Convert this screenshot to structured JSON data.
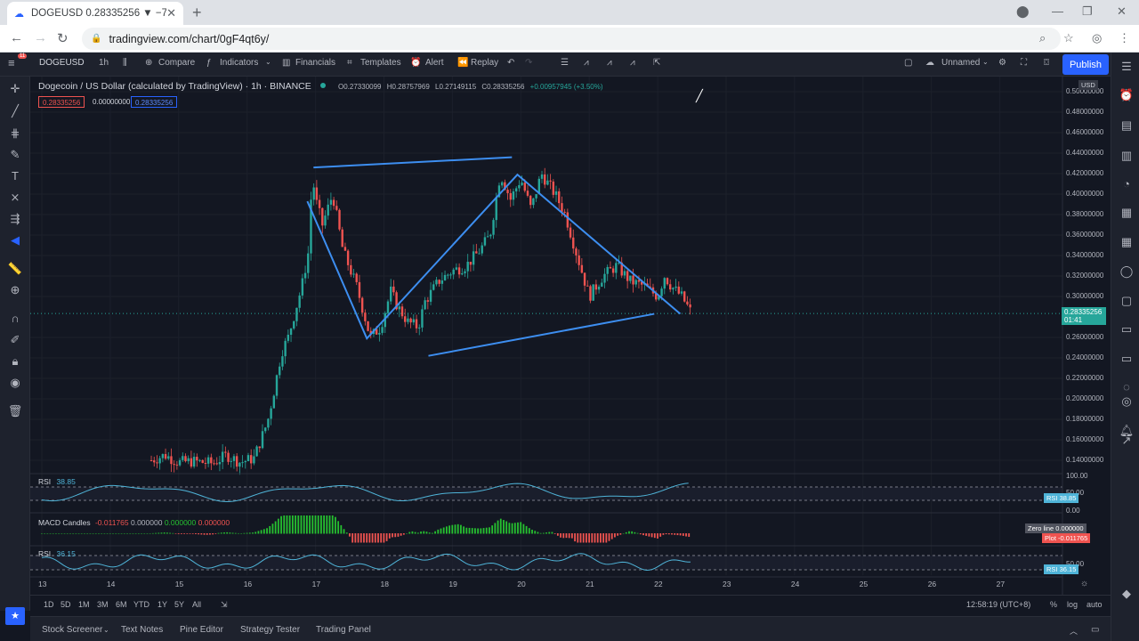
{
  "browser": {
    "tab_title": "DOGEUSD 0.28335256 ▼ −7.45% U",
    "url": "tradingview.com/chart/0gF4qt6y/"
  },
  "toolbar": {
    "symbol": "DOGEUSD",
    "interval": "1h",
    "compare": "Compare",
    "indicators": "Indicators",
    "financials": "Financials",
    "templates": "Templates",
    "alert": "Alert",
    "replay": "Replay",
    "layout_name": "Unnamed",
    "publish": "Publish"
  },
  "legend": {
    "title": "Dogecoin / US Dollar (calculated by TradingView) · 1h · BINANCE",
    "o": "O0.27330099",
    "h": "H0.28757969",
    "l": "L0.27149115",
    "c": "C0.28335256",
    "chg": "+0.00957945 (+3.50%)",
    "sell": "0.28335256",
    "spread": "0.00000000",
    "buy": "0.28335256"
  },
  "price_axis": {
    "currency": "USD",
    "labels": [
      "0.50000000",
      "0.48000000",
      "0.46000000",
      "0.44000000",
      "0.42000000",
      "0.40000000",
      "0.38000000",
      "0.36000000",
      "0.34000000",
      "0.32000000",
      "0.30000000",
      "0.26000000",
      "0.24000000",
      "0.22000000",
      "0.20000000",
      "0.18000000",
      "0.16000000",
      "0.14000000"
    ],
    "last_price": "0.28335256",
    "countdown": "01:41"
  },
  "time_axis": {
    "labels": [
      "13",
      "14",
      "15",
      "16",
      "17",
      "18",
      "19",
      "20",
      "21",
      "22",
      "23",
      "24",
      "25",
      "26",
      "27"
    ]
  },
  "indicators": {
    "rsi1_name": "RSI",
    "rsi1_value": "38.85",
    "rsi1_axis": [
      "100.00",
      "50.00",
      "0.00"
    ],
    "rsi1_tag": "RSI",
    "macd_name": "MACD Candles",
    "macd_v1": "-0.011765",
    "macd_v2": "0.000000",
    "macd_v3": "0.000000",
    "macd_v4": "0.000000",
    "zero_line": "Zero line",
    "zero_value": "0.000000",
    "plot": "Plot",
    "plot_value": "-0.011765",
    "rsi2_name": "RSI",
    "rsi2_value": "36.15",
    "rsi2_axis": "50.00"
  },
  "range_bar": {
    "ranges": [
      "1D",
      "5D",
      "1M",
      "3M",
      "6M",
      "YTD",
      "1Y",
      "5Y",
      "All"
    ],
    "time": "12:58:19 (UTC+8)",
    "pct": "%",
    "log": "log",
    "auto": "auto"
  },
  "bottom_panel": [
    "Stock Screener",
    "Text Notes",
    "Pine Editor",
    "Strategy Tester",
    "Trading Panel"
  ],
  "colors": {
    "up": "#26a69a",
    "down": "#ef5350",
    "accent": "#2962ff",
    "drawing": "#3d8ef0"
  },
  "chart_data": {
    "type": "candlestick",
    "title": "Dogecoin / US Dollar (calculated by TradingView) · 1h · BINANCE",
    "x": [
      "13",
      "14",
      "15",
      "16",
      "17",
      "18",
      "19",
      "20",
      "21",
      "22",
      "23",
      "24",
      "25",
      "26",
      "27"
    ],
    "ylim": [
      0.13,
      0.51
    ],
    "close_path": [
      [
        14.6,
        0.14
      ],
      [
        14.8,
        0.145
      ],
      [
        15.0,
        0.138
      ],
      [
        15.2,
        0.139
      ],
      [
        15.5,
        0.137
      ],
      [
        15.7,
        0.145
      ],
      [
        15.9,
        0.138
      ],
      [
        16.1,
        0.142
      ],
      [
        16.2,
        0.16
      ],
      [
        16.3,
        0.178
      ],
      [
        16.4,
        0.21
      ],
      [
        16.5,
        0.245
      ],
      [
        16.6,
        0.26
      ],
      [
        16.7,
        0.285
      ],
      [
        16.8,
        0.31
      ],
      [
        16.9,
        0.345
      ],
      [
        16.95,
        0.42
      ],
      [
        17.0,
        0.395
      ],
      [
        17.1,
        0.37
      ],
      [
        17.25,
        0.4
      ],
      [
        17.4,
        0.345
      ],
      [
        17.6,
        0.31
      ],
      [
        17.8,
        0.26
      ],
      [
        17.95,
        0.27
      ],
      [
        18.1,
        0.305
      ],
      [
        18.2,
        0.29
      ],
      [
        18.35,
        0.275
      ],
      [
        18.5,
        0.27
      ],
      [
        18.6,
        0.295
      ],
      [
        18.8,
        0.315
      ],
      [
        19.0,
        0.325
      ],
      [
        19.2,
        0.33
      ],
      [
        19.4,
        0.345
      ],
      [
        19.55,
        0.36
      ],
      [
        19.7,
        0.42
      ],
      [
        19.85,
        0.395
      ],
      [
        20.0,
        0.415
      ],
      [
        20.15,
        0.385
      ],
      [
        20.3,
        0.42
      ],
      [
        20.5,
        0.4
      ],
      [
        20.65,
        0.38
      ],
      [
        20.8,
        0.345
      ],
      [
        21.0,
        0.3
      ],
      [
        21.2,
        0.32
      ],
      [
        21.4,
        0.33
      ],
      [
        21.6,
        0.315
      ],
      [
        21.8,
        0.31
      ],
      [
        22.0,
        0.3
      ],
      [
        22.1,
        0.32
      ],
      [
        22.2,
        0.31
      ],
      [
        22.35,
        0.3
      ],
      [
        22.5,
        0.283
      ]
    ],
    "drawings": [
      {
        "type": "trendline",
        "points": [
          [
            16.97,
            0.426
          ],
          [
            19.87,
            0.436
          ]
        ]
      },
      {
        "type": "trendline",
        "points": [
          [
            18.65,
            0.242
          ],
          [
            21.95,
            0.283
          ]
        ]
      },
      {
        "type": "polyline",
        "points": [
          [
            16.88,
            0.393
          ],
          [
            17.75,
            0.259
          ],
          [
            19.95,
            0.419
          ],
          [
            22.33,
            0.283
          ]
        ]
      }
    ]
  }
}
